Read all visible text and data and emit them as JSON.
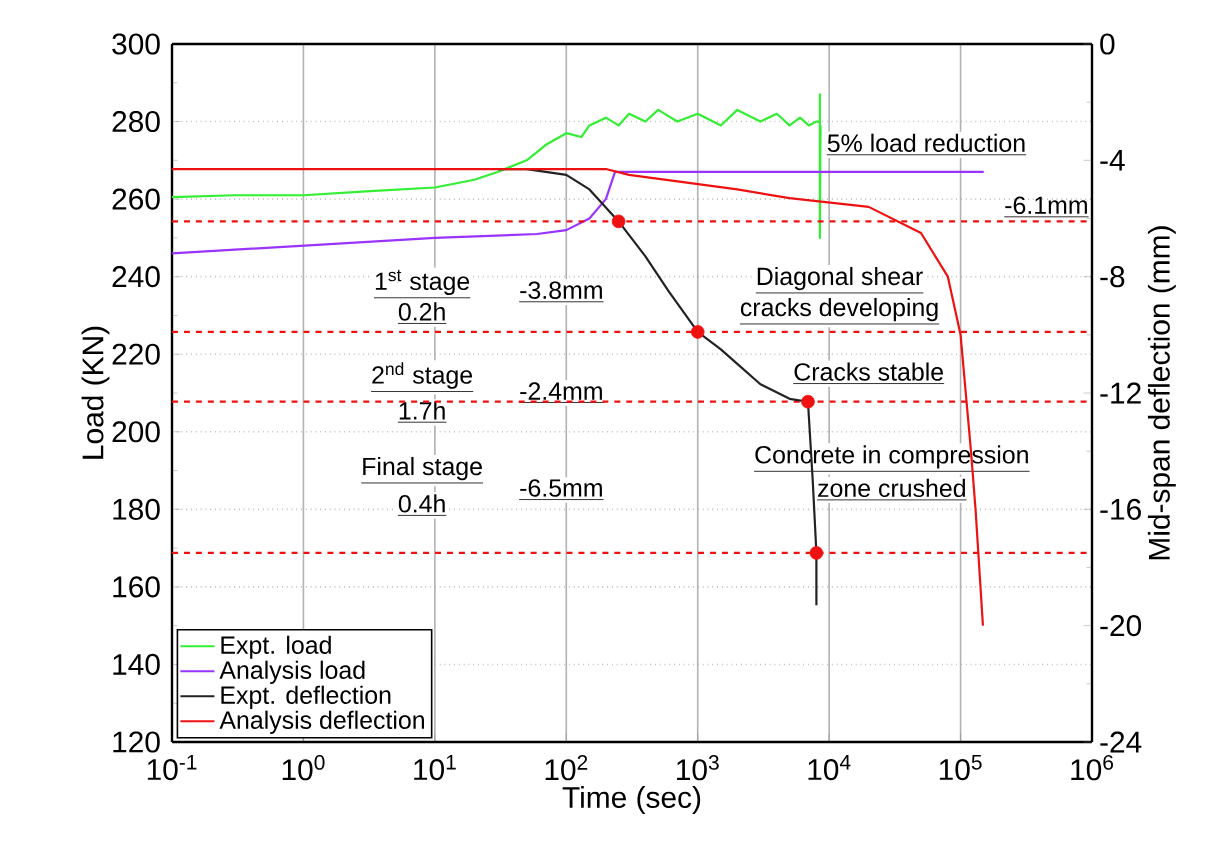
{
  "chart_data": {
    "type": "line",
    "xlabel": "Time (sec)",
    "ylabel": "Load (KN)",
    "y2label": "Mid-span deflection (mm)",
    "log": "x",
    "grid": true,
    "legend": "bottom left",
    "marker": "none",
    "xlim": [
      0.1,
      1000000
    ],
    "xticks": [
      {
        "value": 0.1,
        "label": "10$^{-1}$"
      },
      {
        "value": 1,
        "label": "10$^{0}$"
      },
      {
        "value": 10,
        "label": "10$^{1}$"
      },
      {
        "value": 100,
        "label": "10$^{2}$"
      },
      {
        "value": 1000,
        "label": "10$^{3}$"
      },
      {
        "value": 10000,
        "label": "10$^{4}$"
      },
      {
        "value": 100000,
        "label": "10$^{5}$"
      },
      {
        "value": 1000000,
        "label": "10$^{6}$"
      }
    ],
    "ylim": [
      120,
      300
    ],
    "yticks": [
      120,
      140,
      160,
      180,
      200,
      220,
      240,
      260,
      280,
      300
    ],
    "y2lim": [
      -24,
      0
    ],
    "y2ticks": [
      -24,
      -20,
      -16,
      -12,
      -8,
      -4,
      0
    ],
    "series": [
      {
        "name": "Expt. load",
        "color": "#33ee33",
        "x": [
          0.1,
          0.3,
          1,
          3,
          10,
          20,
          30,
          50,
          70,
          100,
          130,
          150,
          200,
          250,
          300,
          400,
          500,
          700,
          1000,
          1500,
          2000,
          3000,
          4000,
          5000,
          6000,
          7000,
          8000,
          8500,
          8500,
          8500,
          8600
        ],
        "values": [
          260.5,
          261,
          261,
          262,
          263,
          265,
          267,
          270,
          274,
          277,
          276,
          279,
          281,
          279,
          282,
          280,
          283,
          280,
          282,
          279,
          283,
          280,
          282,
          279,
          281,
          279,
          280,
          280,
          287,
          250,
          279
        ]
      },
      {
        "name": "Analysis load",
        "color": "#9933ff",
        "x": [
          0.1,
          1,
          10,
          60,
          100,
          150,
          200,
          235,
          150000
        ],
        "values": [
          246,
          248,
          250,
          251,
          252,
          255,
          260,
          267,
          267
        ]
      },
      {
        "name": "Expt. deflection",
        "axis": "y2",
        "color": "#222222",
        "x": [
          30,
          50,
          100,
          150,
          250,
          400,
          600,
          1000,
          1500,
          2000,
          3000,
          5000,
          6900,
          7500,
          8000,
          8000
        ],
        "values": [
          -4.3,
          -4.3,
          -4.5,
          -5,
          -6.1,
          -7.3,
          -8.5,
          -9.9,
          -10.5,
          -11,
          -11.7,
          -12.2,
          -12.3,
          -15,
          -17.5,
          -19.3
        ]
      },
      {
        "name": "Analysis deflection",
        "axis": "y2",
        "color": "#ee1111",
        "x": [
          0.1,
          10,
          200,
          300,
          2000,
          5000,
          20000,
          50000,
          80000,
          100000,
          120000,
          130000,
          148000
        ],
        "values": [
          -4.3,
          -4.3,
          -4.3,
          -4.5,
          -5,
          -5.3,
          -5.6,
          -6.5,
          -8,
          -10,
          -14,
          -16,
          -20
        ]
      },
      {
        "type": "scatter",
        "axis": "y2",
        "marker": "circle",
        "color": "#ee1111",
        "x": [
          250,
          1000,
          6900,
          8000
        ],
        "values": [
          -6.1,
          -9.9,
          -12.3,
          -17.5
        ]
      }
    ],
    "ref_lines": [
      {
        "axis": "y2",
        "value": -6.1,
        "label": "-6.1mm",
        "color": "#ee1111",
        "line_style": "dashed"
      },
      {
        "axis": "y2",
        "value": -9.9,
        "color": "#ee1111",
        "line_style": "dashed"
      },
      {
        "axis": "y2",
        "value": -12.3,
        "color": "#ee1111",
        "line_style": "dashed"
      },
      {
        "axis": "y2",
        "value": -17.5,
        "color": "#ee1111",
        "line_style": "dashed"
      }
    ],
    "annotations": [
      "5% load reduction",
      "1$^{st}$ stage",
      "0.2h",
      "2$^{nd}$ stage",
      "1.7h",
      "Final stage",
      "0.4h",
      "-3.8mm",
      "-2.4mm",
      "-6.5mm",
      "Diagonal shear",
      "cracks developing",
      "Cracks stable",
      "Concrete in compression",
      "zone crushed"
    ]
  }
}
